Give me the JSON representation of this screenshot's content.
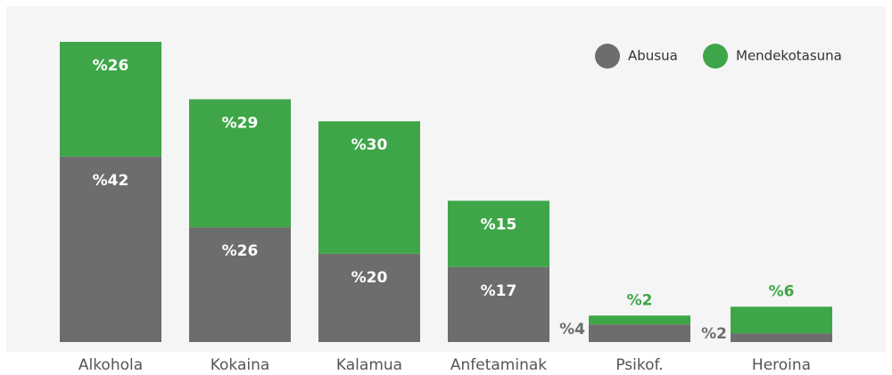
{
  "chart_data": {
    "type": "stacked-bar",
    "categories": [
      "Alkohola",
      "Kokaina",
      "Kalamua",
      "Anfetaminak",
      "Psikof.",
      "Heroina"
    ],
    "series": [
      {
        "name": "Abusua",
        "color": "#6d6d6d",
        "values": [
          42,
          26,
          20,
          17,
          4,
          2
        ],
        "value_labels": [
          "%42",
          "%26",
          "%20",
          "%17",
          "%4",
          "%2"
        ]
      },
      {
        "name": "Mendekotasuna",
        "color": "#3ea648",
        "values": [
          26,
          29,
          30,
          15,
          2,
          6
        ],
        "value_labels": [
          "%26",
          "%29",
          "%30",
          "%15",
          "%2",
          "%6"
        ]
      }
    ],
    "legend": "top-right"
  }
}
